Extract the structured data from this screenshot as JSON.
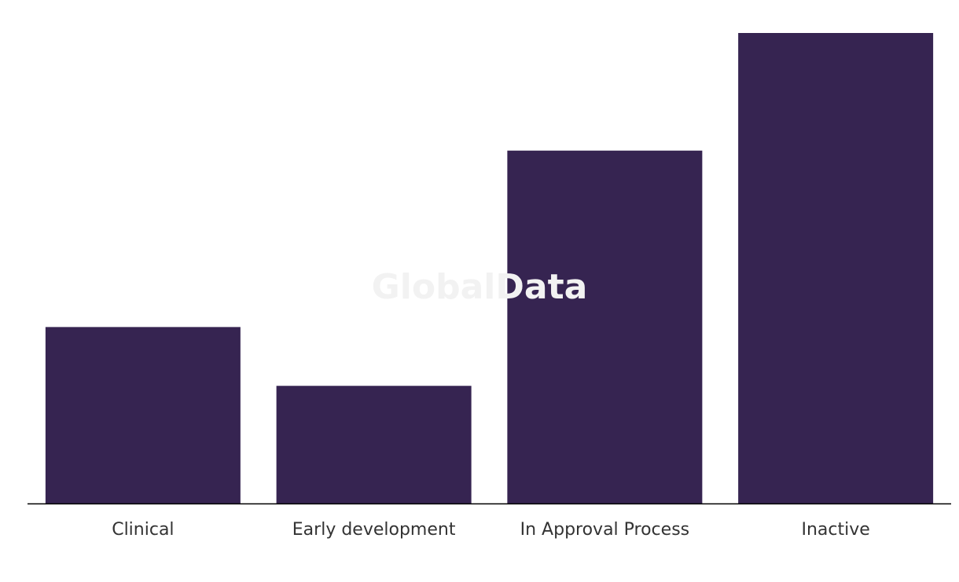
{
  "watermark": "GlobalData",
  "chart_data": {
    "type": "bar",
    "categories": [
      "Clinical",
      "Early development",
      "In Approval Process",
      "Inactive"
    ],
    "values": [
      3,
      2,
      6,
      8
    ],
    "title": "",
    "xlabel": "",
    "ylabel": "",
    "ylim": [
      0,
      8
    ],
    "grid": false,
    "legend": "none",
    "colors": {
      "bar": "#362451",
      "axis": "#000000",
      "label": "#333333"
    }
  }
}
